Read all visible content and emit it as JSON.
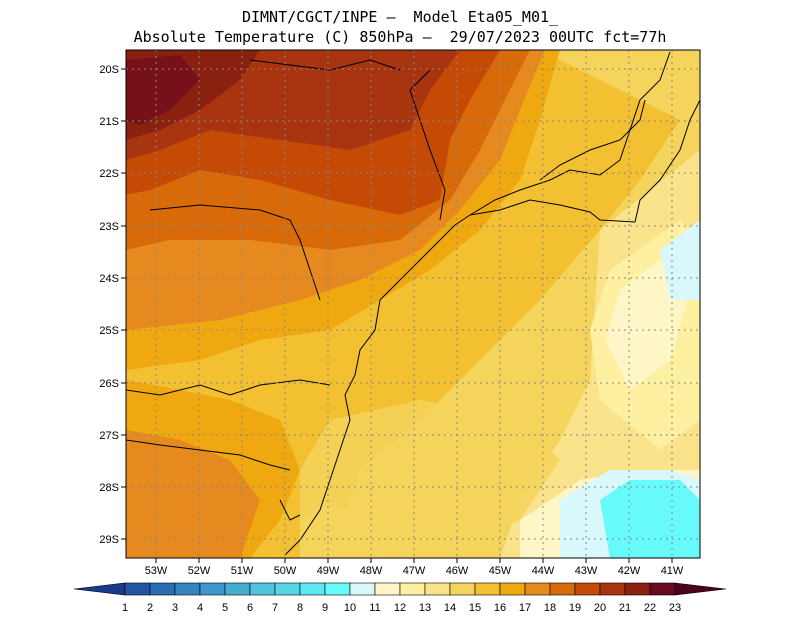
{
  "header": {
    "line1": "DIMNT/CGCT/INPE –  Model Eta05_M01_",
    "line2": "Absolute Temperature (C) 850hPa –  29/07/2023 00UTC fct=77h"
  },
  "map": {
    "lon_range": [
      -53.8,
      -40.4
    ],
    "lat_range": [
      -29.4,
      -19.8
    ],
    "lon_labels": [
      "53W",
      "52W",
      "51W",
      "50W",
      "49W",
      "48W",
      "47W",
      "46W",
      "45W",
      "44W",
      "43W",
      "42W",
      "41W"
    ],
    "lat_labels": [
      "20S",
      "21S",
      "22S",
      "23S",
      "24S",
      "25S",
      "26S",
      "27S",
      "28S",
      "29S"
    ]
  },
  "colorbar": {
    "labels": [
      "1",
      "2",
      "3",
      "4",
      "5",
      "6",
      "7",
      "8",
      "9",
      "10",
      "11",
      "12",
      "13",
      "14",
      "15",
      "16",
      "17",
      "18",
      "19",
      "20",
      "21",
      "22",
      "23"
    ],
    "colors": [
      "#1a3a8c",
      "#2255a4",
      "#2a6db5",
      "#3584c0",
      "#3d97c8",
      "#45aed0",
      "#4fc4dc",
      "#55d6e6",
      "#5ce8f0",
      "#66fafa",
      "#d8f8fc",
      "#fff6c8",
      "#fdf0a0",
      "#fae38a",
      "#f5d45c",
      "#f2c030",
      "#f0a810",
      "#e68a20",
      "#d86a0a",
      "#c44a06",
      "#a83410",
      "#8a2010",
      "#6a0820",
      "#4a0418"
    ]
  }
}
